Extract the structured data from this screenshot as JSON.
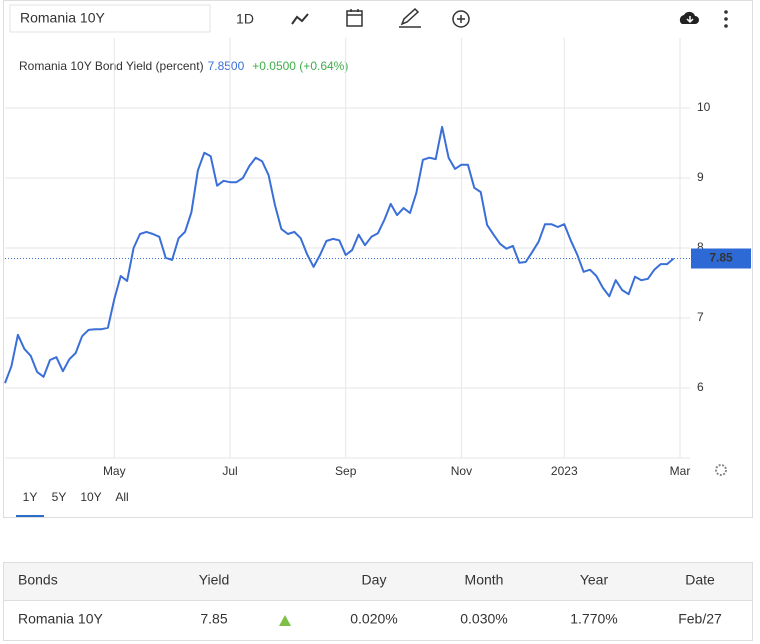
{
  "toolbar": {
    "search": "Romania 10Y",
    "interval": "1D"
  },
  "chart_data": {
    "type": "line",
    "title": "Romania 10Y Bond Yield (percent)",
    "last": "7.8500",
    "change": "+0.0500 (+0.64%)",
    "categories": [
      null,
      null,
      null,
      null,
      null,
      null,
      null,
      null,
      null,
      null,
      null,
      null,
      null,
      null,
      null,
      null,
      null,
      "May",
      null,
      null,
      null,
      null,
      null,
      null,
      null,
      null,
      null,
      null,
      null,
      null,
      null,
      null,
      null,
      null,
      null,
      "Jul",
      null,
      null,
      null,
      null,
      null,
      null,
      null,
      null,
      null,
      null,
      null,
      null,
      null,
      null,
      null,
      null,
      null,
      "Sep",
      null,
      null,
      null,
      null,
      null,
      null,
      null,
      null,
      null,
      null,
      null,
      null,
      null,
      null,
      null,
      null,
      null,
      "Nov",
      null,
      null,
      null,
      null,
      null,
      null,
      null,
      null,
      null,
      null,
      null,
      null,
      null,
      null,
      null,
      "2023",
      null,
      null,
      null,
      null,
      null,
      null,
      null,
      null,
      null,
      null,
      null,
      null,
      null,
      null,
      null,
      null,
      null,
      "Mar"
    ],
    "values": [
      6.07,
      6.31,
      6.76,
      6.56,
      6.46,
      6.23,
      6.16,
      6.4,
      6.44,
      6.24,
      6.41,
      6.5,
      6.74,
      6.83,
      6.84,
      6.84,
      6.86,
      7.27,
      7.6,
      7.53,
      8.0,
      8.2,
      8.23,
      8.2,
      8.16,
      7.86,
      7.83,
      8.14,
      8.23,
      8.51,
      9.11,
      9.36,
      9.31,
      8.89,
      8.96,
      8.94,
      8.94,
      9.0,
      9.17,
      9.29,
      9.24,
      9.04,
      8.61,
      8.27,
      8.2,
      8.23,
      8.14,
      7.91,
      7.73,
      7.9,
      8.1,
      8.13,
      8.11,
      7.9,
      7.97,
      8.19,
      8.04,
      8.16,
      8.21,
      8.4,
      8.63,
      8.47,
      8.57,
      8.5,
      8.79,
      9.26,
      9.29,
      9.27,
      9.73,
      9.29,
      9.13,
      9.19,
      9.19,
      8.86,
      8.8,
      8.33,
      8.19,
      8.06,
      7.99,
      8.03,
      7.79,
      7.8,
      7.94,
      8.09,
      8.34,
      8.34,
      8.3,
      8.34,
      8.11,
      7.91,
      7.66,
      7.69,
      7.6,
      7.43,
      7.31,
      7.54,
      7.4,
      7.34,
      7.59,
      7.54,
      7.56,
      7.69,
      7.77,
      7.77,
      7.85,
      null
    ],
    "color": "#3a6fd8",
    "ylim": [
      5,
      11
    ],
    "yticks": [
      6,
      7,
      8,
      9,
      10
    ],
    "grid": true,
    "last_close": 7.85
  },
  "ranges": [
    "1Y",
    "5Y",
    "10Y",
    "All"
  ],
  "table": {
    "header": [
      "Bonds",
      "Yield",
      "Day",
      "Month",
      "Year",
      "Date"
    ],
    "rows": [
      [
        "Romania 10Y",
        "7.85",
        "0.020%",
        "0.030%",
        "1.770%",
        "Feb/27"
      ]
    ]
  }
}
